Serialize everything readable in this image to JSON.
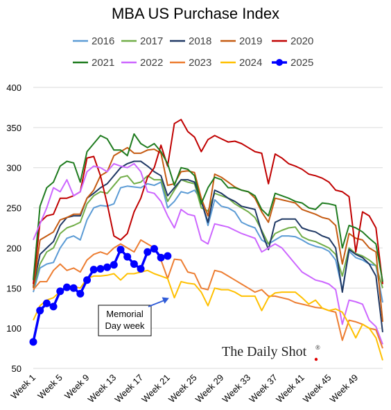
{
  "chart_data": {
    "type": "line",
    "title": "MBA US Purchase Index",
    "ylim": [
      50,
      400
    ],
    "yticks": [
      50,
      100,
      150,
      200,
      250,
      300,
      350,
      400
    ],
    "xlim": [
      1,
      53
    ],
    "xticks": [
      {
        "x": 1,
        "label": "Week 1"
      },
      {
        "x": 5,
        "label": "Week 5"
      },
      {
        "x": 9,
        "label": "Week 9"
      },
      {
        "x": 13,
        "label": "Week 13"
      },
      {
        "x": 17,
        "label": "Week 17"
      },
      {
        "x": 21,
        "label": "Week 21"
      },
      {
        "x": 25,
        "label": "Week 25"
      },
      {
        "x": 29,
        "label": "Week 29"
      },
      {
        "x": 33,
        "label": "Week 33"
      },
      {
        "x": 37,
        "label": "Week 37"
      },
      {
        "x": 41,
        "label": "Week 41"
      },
      {
        "x": 45,
        "label": "Week 45"
      },
      {
        "x": 49,
        "label": "Week 49"
      }
    ],
    "grid": true,
    "legend_position": "top",
    "series": [
      {
        "name": "2016",
        "color": "#5b9bd5",
        "values": [
          145,
          175,
          180,
          182,
          200,
          212,
          215,
          210,
          235,
          250,
          253,
          252,
          255,
          275,
          277,
          276,
          275,
          280,
          278,
          282,
          250,
          258,
          270,
          268,
          272,
          260,
          228,
          260,
          252,
          250,
          245,
          232,
          228,
          225,
          210,
          205,
          210,
          215,
          215,
          214,
          210,
          205,
          202,
          200,
          196,
          185,
          148,
          196,
          188,
          185,
          180,
          178,
          132
        ]
      },
      {
        "name": "2017",
        "color": "#70ad47",
        "values": [
          150,
          180,
          195,
          200,
          218,
          225,
          228,
          232,
          255,
          265,
          270,
          268,
          278,
          288,
          290,
          280,
          282,
          290,
          285,
          285,
          258,
          272,
          285,
          282,
          280,
          250,
          246,
          268,
          265,
          262,
          255,
          250,
          245,
          238,
          222,
          205,
          218,
          222,
          225,
          226,
          214,
          210,
          208,
          204,
          200,
          192,
          165,
          200,
          193,
          190,
          185,
          178,
          150
        ]
      },
      {
        "name": "2018",
        "color": "#1f3864",
        "values": [
          152,
          192,
          200,
          208,
          228,
          238,
          240,
          240,
          262,
          268,
          275,
          280,
          290,
          300,
          305,
          308,
          308,
          302,
          295,
          290,
          265,
          275,
          285,
          285,
          282,
          258,
          232,
          272,
          268,
          262,
          258,
          252,
          250,
          248,
          220,
          198,
          232,
          236,
          236,
          236,
          225,
          222,
          220,
          215,
          212,
          200,
          145,
          198,
          192,
          188,
          180,
          165,
          95
        ]
      },
      {
        "name": "2019",
        "color": "#c55a11",
        "values": [
          150,
          210,
          215,
          220,
          235,
          238,
          242,
          242,
          262,
          272,
          290,
          295,
          315,
          320,
          325,
          318,
          318,
          322,
          323,
          318,
          278,
          280,
          295,
          296,
          294,
          262,
          240,
          292,
          288,
          282,
          276,
          272,
          270,
          262,
          245,
          232,
          262,
          260,
          258,
          256,
          248,
          245,
          242,
          238,
          236,
          228,
          180,
          218,
          212,
          210,
          200,
          195,
          108
        ]
      },
      {
        "name": "2020",
        "color": "#c00000",
        "values": [
          155,
          232,
          240,
          242,
          262,
          262,
          265,
          270,
          312,
          314,
          290,
          255,
          215,
          210,
          218,
          245,
          262,
          288,
          300,
          328,
          302,
          355,
          360,
          345,
          338,
          320,
          335,
          340,
          336,
          332,
          333,
          330,
          325,
          320,
          318,
          280,
          317,
          312,
          305,
          302,
          298,
          292,
          290,
          287,
          282,
          272,
          270,
          264,
          195,
          245,
          240,
          225,
          155
        ]
      },
      {
        "name": "2021",
        "color": "#1e7b1e",
        "values": [
          160,
          252,
          275,
          282,
          302,
          308,
          306,
          282,
          320,
          330,
          340,
          336,
          322,
          322,
          315,
          342,
          330,
          325,
          330,
          320,
          305,
          278,
          300,
          298,
          290,
          255,
          275,
          288,
          285,
          275,
          275,
          272,
          270,
          265,
          248,
          240,
          268,
          265,
          262,
          258,
          256,
          250,
          248,
          256,
          255,
          253,
          200,
          228,
          225,
          220,
          212,
          205,
          158
        ]
      },
      {
        "name": "2022",
        "color": "#cc66ff",
        "values": [
          210,
          230,
          250,
          275,
          270,
          285,
          265,
          270,
          295,
          302,
          300,
          295,
          305,
          302,
          300,
          305,
          295,
          270,
          268,
          258,
          240,
          225,
          248,
          242,
          240,
          210,
          205,
          230,
          228,
          226,
          222,
          218,
          215,
          212,
          195,
          200,
          205,
          200,
          190,
          180,
          170,
          165,
          160,
          158,
          155,
          148,
          105,
          135,
          133,
          130,
          110,
          102,
          80
        ]
      },
      {
        "name": "2023",
        "color": "#ed7d31",
        "values": [
          148,
          158,
          158,
          172,
          180,
          172,
          175,
          170,
          185,
          192,
          195,
          192,
          200,
          205,
          200,
          195,
          210,
          205,
          200,
          185,
          162,
          186,
          185,
          170,
          168,
          150,
          148,
          172,
          170,
          165,
          160,
          155,
          150,
          145,
          148,
          140,
          140,
          138,
          136,
          132,
          130,
          128,
          126,
          125,
          122,
          120,
          85,
          110,
          108,
          105,
          100,
          98,
          75
        ]
      },
      {
        "name": "2024",
        "color": "#ffc000",
        "values": [
          110,
          128,
          135,
          138,
          146,
          150,
          152,
          150,
          162,
          165,
          165,
          166,
          168,
          160,
          168,
          168,
          170,
          172,
          168,
          165,
          162,
          138,
          158,
          156,
          155,
          145,
          128,
          150,
          148,
          148,
          145,
          140,
          140,
          140,
          122,
          138,
          144,
          145,
          145,
          145,
          138,
          130,
          135,
          125,
          122,
          124,
          120,
          105,
          88,
          105,
          100,
          88,
          60
        ]
      },
      {
        "name": "2025",
        "color": "#0000ff",
        "marker": true,
        "values": [
          83,
          122,
          131,
          127,
          146,
          151,
          150,
          143,
          160,
          173,
          174,
          176,
          179,
          198,
          189,
          180,
          174,
          195,
          199,
          188,
          190
        ]
      }
    ],
    "annotations": [
      {
        "text_lines": [
          "Memorial",
          "Day week"
        ],
        "arrow_to_week": 21,
        "arrow_to_value": 135
      }
    ]
  },
  "branding": {
    "text": "The Daily Shot",
    "registered": "®"
  }
}
